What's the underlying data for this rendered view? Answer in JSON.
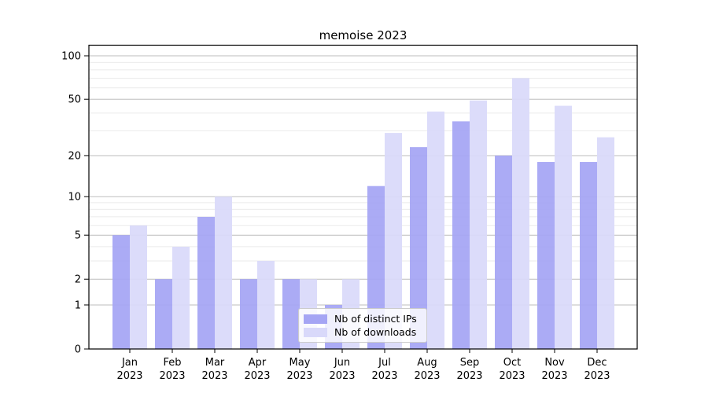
{
  "chart_data": {
    "type": "bar",
    "title": "memoise 2023",
    "x": [
      "Jan",
      "Feb",
      "Mar",
      "Apr",
      "May",
      "Jun",
      "Jul",
      "Aug",
      "Sep",
      "Oct",
      "Nov",
      "Dec"
    ],
    "x_year": "2023",
    "series": [
      {
        "name": "Nb of distinct IPs",
        "color": "#a5a5f4",
        "values": [
          5,
          2,
          7,
          2,
          2,
          1,
          12,
          23,
          35,
          20,
          18,
          18
        ]
      },
      {
        "name": "Nb of downloads",
        "color": "#d9d9fa",
        "values": [
          6,
          4,
          10,
          3,
          2,
          2,
          29,
          41,
          49,
          70,
          45,
          27
        ]
      }
    ],
    "yscale": "log1p",
    "ylim": [
      0,
      117
    ],
    "y_tick_labels": [
      "100",
      "50",
      "20",
      "10",
      "5",
      "2",
      "1",
      "0"
    ],
    "y_tick_values": [
      100,
      50,
      20,
      10,
      5,
      2,
      1,
      0
    ],
    "y_minor_ticks": [
      3,
      4,
      6,
      7,
      8,
      9,
      30,
      40,
      60,
      70,
      80,
      90
    ],
    "grid": true,
    "legend_position": "lower center",
    "colors": {
      "major_gridline": "#bdbdbd",
      "minor_gridline": "#ebebeb",
      "frame": "#000000",
      "text": "#000000"
    }
  }
}
